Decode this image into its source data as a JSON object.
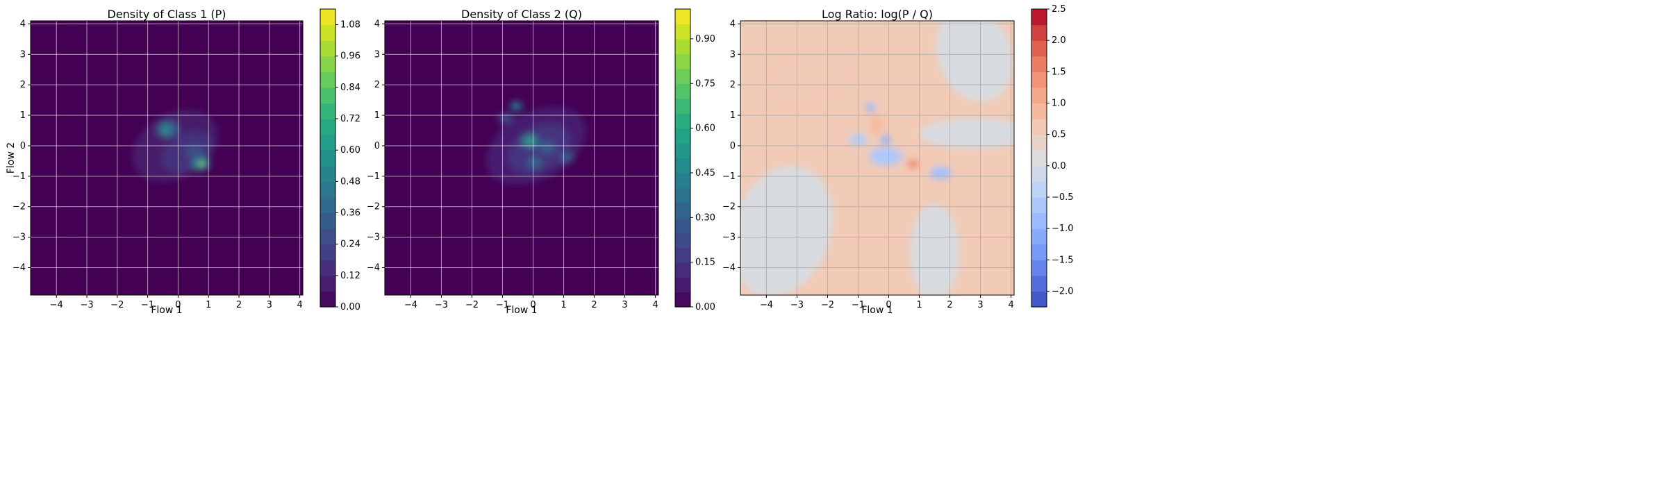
{
  "chart_data": [
    {
      "type": "heatmap",
      "title": "Density of Class 1 (P)",
      "xlabel": "Flow 1",
      "ylabel": "Flow 2",
      "xlim": [
        -4.85,
        4.1
      ],
      "ylim": [
        -4.9,
        4.1
      ],
      "xticks": [
        -4,
        -3,
        -2,
        -1,
        0,
        1,
        2,
        3,
        4
      ],
      "yticks": [
        -4,
        -3,
        -2,
        -1,
        0,
        1,
        2,
        3,
        4
      ],
      "grid": true,
      "colormap": "viridis",
      "background_color": "#440154",
      "colorbar": {
        "min": 0.0,
        "max": 1.14,
        "ticks": [
          0.0,
          0.12,
          0.24,
          0.36,
          0.48,
          0.6,
          0.72,
          0.84,
          0.96,
          1.08
        ],
        "decimals": 2,
        "levels": 19
      },
      "blobs": [
        {
          "x": -0.1,
          "y": 0.0,
          "rx": 1.5,
          "ry": 1.05,
          "rot": -30,
          "level": 0.08
        },
        {
          "x": 0.3,
          "y": -0.2,
          "rx": 0.9,
          "ry": 0.6,
          "rot": -30,
          "level": 0.16
        },
        {
          "x": -0.35,
          "y": 0.55,
          "rx": 0.35,
          "ry": 0.28,
          "rot": 0,
          "level": 0.34
        },
        {
          "x": -0.4,
          "y": 0.5,
          "rx": 0.14,
          "ry": 0.12,
          "rot": 0,
          "level": 0.6
        },
        {
          "x": 0.55,
          "y": -0.2,
          "rx": 0.3,
          "ry": 0.22,
          "rot": 0,
          "level": 0.28
        },
        {
          "x": 0.75,
          "y": -0.6,
          "rx": 0.3,
          "ry": 0.22,
          "rot": 0,
          "level": 0.48
        },
        {
          "x": 0.78,
          "y": -0.6,
          "rx": 0.1,
          "ry": 0.08,
          "rot": 0,
          "level": 0.96
        }
      ]
    },
    {
      "type": "heatmap",
      "title": "Density of Class 2 (Q)",
      "xlabel": "Flow 1",
      "ylabel": "",
      "xlim": [
        -4.85,
        4.1
      ],
      "ylim": [
        -4.9,
        4.1
      ],
      "xticks": [
        -4,
        -3,
        -2,
        -1,
        0,
        1,
        2,
        3,
        4
      ],
      "yticks": [
        -4,
        -3,
        -2,
        -1,
        0,
        1,
        2,
        3,
        4
      ],
      "grid": true,
      "colormap": "viridis",
      "background_color": "#440154",
      "colorbar": {
        "min": 0.0,
        "max": 1.0,
        "ticks": [
          0.0,
          0.15,
          0.3,
          0.45,
          0.6,
          0.75,
          0.9
        ],
        "decimals": 2,
        "levels": 20
      },
      "blobs": [
        {
          "x": 0.1,
          "y": 0.0,
          "rx": 1.75,
          "ry": 1.1,
          "rot": -28,
          "level": 0.08
        },
        {
          "x": 0.2,
          "y": -0.1,
          "rx": 1.1,
          "ry": 0.7,
          "rot": -28,
          "level": 0.15
        },
        {
          "x": -0.55,
          "y": 1.3,
          "rx": 0.2,
          "ry": 0.16,
          "rot": 0,
          "level": 0.38
        },
        {
          "x": -0.1,
          "y": 0.15,
          "rx": 0.28,
          "ry": 0.22,
          "rot": 0,
          "level": 0.42
        },
        {
          "x": -0.1,
          "y": 0.15,
          "rx": 0.08,
          "ry": 0.07,
          "rot": 0,
          "level": 0.75
        },
        {
          "x": 0.45,
          "y": -0.05,
          "rx": 0.25,
          "ry": 0.2,
          "rot": 0,
          "level": 0.3
        },
        {
          "x": 0.05,
          "y": -0.55,
          "rx": 0.22,
          "ry": 0.18,
          "rot": 0,
          "level": 0.33
        },
        {
          "x": 1.1,
          "y": -0.4,
          "rx": 0.22,
          "ry": 0.18,
          "rot": 0,
          "level": 0.28
        },
        {
          "x": -0.9,
          "y": 0.9,
          "rx": 0.25,
          "ry": 0.18,
          "rot": 0,
          "level": 0.22
        }
      ]
    },
    {
      "type": "heatmap",
      "title": "Log Ratio: log(P / Q)",
      "xlabel": "Flow 1",
      "ylabel": "",
      "xlim": [
        -4.85,
        4.1
      ],
      "ylim": [
        -4.9,
        4.1
      ],
      "xticks": [
        -4,
        -3,
        -2,
        -1,
        0,
        1,
        2,
        3,
        4
      ],
      "yticks": [
        -4,
        -3,
        -2,
        -1,
        0,
        1,
        2,
        3,
        4
      ],
      "grid": true,
      "colormap": "coolwarm",
      "background_color": "#f2cbb7",
      "colorbar": {
        "min": -2.25,
        "max": 2.5,
        "ticks": [
          -2.0,
          -1.5,
          -1.0,
          -0.5,
          0.0,
          0.5,
          1.0,
          1.5,
          2.0,
          2.5
        ],
        "decimals": 1,
        "levels": 19
      },
      "blobs": [
        {
          "x": -3.5,
          "y": -2.8,
          "rx": 1.6,
          "ry": 2.2,
          "rot": 20,
          "level": 0.05
        },
        {
          "x": 2.8,
          "y": 3.0,
          "rx": 1.2,
          "ry": 1.6,
          "rot": -20,
          "level": 0.05
        },
        {
          "x": 1.5,
          "y": -3.5,
          "rx": 0.8,
          "ry": 1.6,
          "rot": 0,
          "level": 0.05
        },
        {
          "x": 2.8,
          "y": 0.4,
          "rx": 1.8,
          "ry": 0.5,
          "rot": 0,
          "level": 0.05
        },
        {
          "x": -2.5,
          "y": 2.3,
          "rx": 1.4,
          "ry": 0.6,
          "rot": -20,
          "level": 0.6
        },
        {
          "x": 0.8,
          "y": -0.6,
          "rx": 0.2,
          "ry": 0.16,
          "rot": 0,
          "level": 1.2
        },
        {
          "x": 0.8,
          "y": -0.6,
          "rx": 0.08,
          "ry": 0.07,
          "rot": 0,
          "level": 2.0
        },
        {
          "x": -0.4,
          "y": 0.7,
          "rx": 0.2,
          "ry": 0.3,
          "rot": 0,
          "level": 0.9
        },
        {
          "x": -1.5,
          "y": 0.4,
          "rx": 0.3,
          "ry": 0.15,
          "rot": 0,
          "level": 0.6
        },
        {
          "x": -0.1,
          "y": -0.35,
          "rx": 0.55,
          "ry": 0.3,
          "rot": 0,
          "level": -0.6
        },
        {
          "x": -0.1,
          "y": 0.2,
          "rx": 0.15,
          "ry": 0.15,
          "rot": 0,
          "level": -1.1
        },
        {
          "x": 1.7,
          "y": -0.9,
          "rx": 0.35,
          "ry": 0.2,
          "rot": 0,
          "level": -0.8
        },
        {
          "x": -0.6,
          "y": 1.25,
          "rx": 0.15,
          "ry": 0.15,
          "rot": 0,
          "level": -0.9
        },
        {
          "x": -1.0,
          "y": 0.2,
          "rx": 0.3,
          "ry": 0.2,
          "rot": 0,
          "level": -0.5
        }
      ]
    }
  ]
}
